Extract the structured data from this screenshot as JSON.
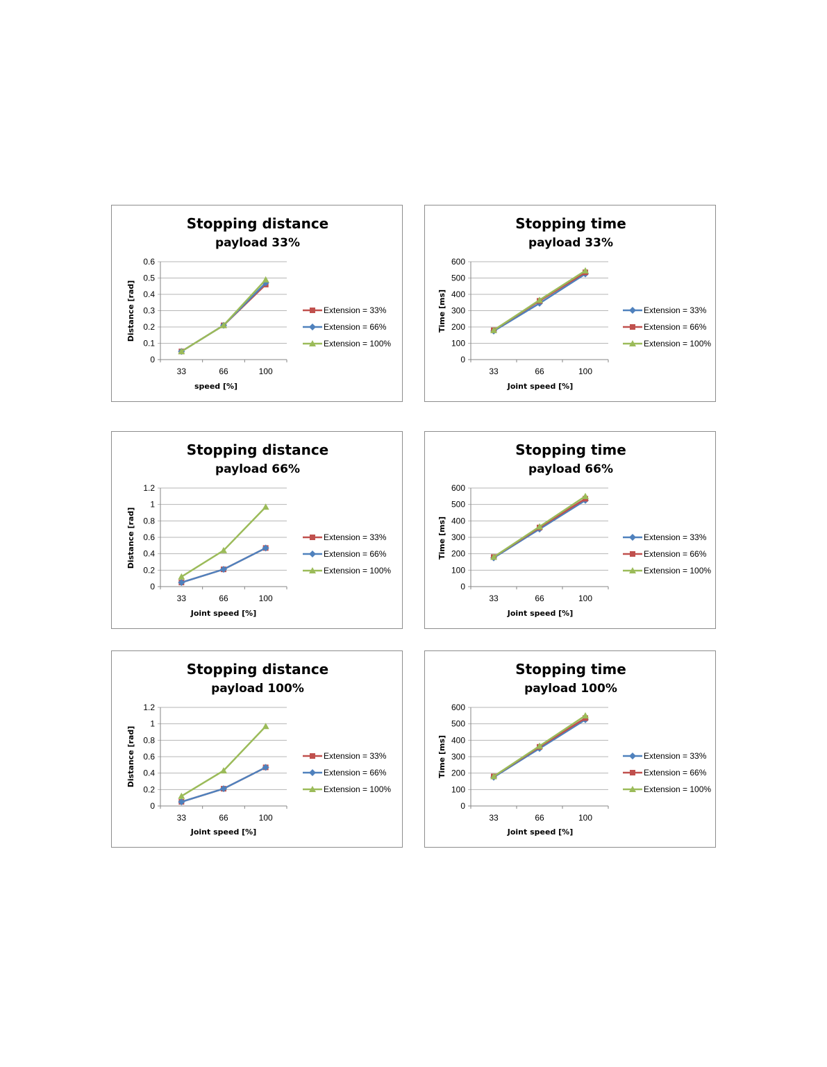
{
  "chart_data": [
    {
      "type": "line",
      "title": "Stopping distance",
      "subtitle": "payload 33%",
      "xlabel": "speed [%]",
      "ylabel": "Distance [rad]",
      "categories": [
        "33",
        "66",
        "100"
      ],
      "yticks": [
        "0",
        "0.1",
        "0.2",
        "0.3",
        "0.4",
        "0.5",
        "0.6"
      ],
      "ylim": [
        0,
        0.6
      ],
      "grid": true,
      "legend_position": "right",
      "series": [
        {
          "name": "Extension = 33%",
          "color": "#c0504d",
          "marker": "square",
          "values": [
            0.05,
            0.21,
            0.46
          ]
        },
        {
          "name": "Extension = 66%",
          "color": "#4f81bd",
          "marker": "diamond",
          "values": [
            0.05,
            0.21,
            0.47
          ]
        },
        {
          "name": "Extension = 100%",
          "color": "#9bbb59",
          "marker": "triangle",
          "values": [
            0.05,
            0.21,
            0.49
          ]
        }
      ]
    },
    {
      "type": "line",
      "title": "Stopping time",
      "subtitle": "payload 33%",
      "xlabel": "Joint speed [%]",
      "ylabel": "Time [ms]",
      "categories": [
        "33",
        "66",
        "100"
      ],
      "yticks": [
        "0",
        "100",
        "200",
        "300",
        "400",
        "500",
        "600"
      ],
      "ylim": [
        0,
        600
      ],
      "grid": true,
      "legend_position": "right",
      "series": [
        {
          "name": "Extension = 33%",
          "color": "#4f81bd",
          "marker": "diamond",
          "values": [
            175,
            345,
            525
          ]
        },
        {
          "name": "Extension = 66%",
          "color": "#c0504d",
          "marker": "square",
          "values": [
            180,
            360,
            535
          ]
        },
        {
          "name": "Extension = 100%",
          "color": "#9bbb59",
          "marker": "triangle",
          "values": [
            180,
            365,
            545
          ]
        }
      ]
    },
    {
      "type": "line",
      "title": "Stopping distance",
      "subtitle": "payload 66%",
      "xlabel": "Joint speed [%]",
      "ylabel": "Distance [rad]",
      "categories": [
        "33",
        "66",
        "100"
      ],
      "yticks": [
        "0",
        "0.2",
        "0.4",
        "0.6",
        "0.8",
        "1",
        "1.2"
      ],
      "ylim": [
        0,
        1.2
      ],
      "grid": true,
      "legend_position": "right",
      "series": [
        {
          "name": "Extension = 33%",
          "color": "#c0504d",
          "marker": "square",
          "values": [
            0.05,
            0.21,
            0.47
          ]
        },
        {
          "name": "Extension = 66%",
          "color": "#4f81bd",
          "marker": "diamond",
          "values": [
            0.05,
            0.21,
            0.47
          ]
        },
        {
          "name": "Extension = 100%",
          "color": "#9bbb59",
          "marker": "triangle",
          "values": [
            0.12,
            0.44,
            0.97
          ]
        }
      ]
    },
    {
      "type": "line",
      "title": "Stopping time",
      "subtitle": "payload 66%",
      "xlabel": "Joint speed [%]",
      "ylabel": "Time [ms]",
      "categories": [
        "33",
        "66",
        "100"
      ],
      "yticks": [
        "0",
        "100",
        "200",
        "300",
        "400",
        "500",
        "600"
      ],
      "ylim": [
        0,
        600
      ],
      "grid": true,
      "legend_position": "right",
      "series": [
        {
          "name": "Extension = 33%",
          "color": "#4f81bd",
          "marker": "diamond",
          "values": [
            175,
            350,
            525
          ]
        },
        {
          "name": "Extension = 66%",
          "color": "#c0504d",
          "marker": "square",
          "values": [
            180,
            360,
            535
          ]
        },
        {
          "name": "Extension = 100%",
          "color": "#9bbb59",
          "marker": "triangle",
          "values": [
            180,
            365,
            550
          ]
        }
      ]
    },
    {
      "type": "line",
      "title": "Stopping distance",
      "subtitle": "payload 100%",
      "xlabel": "Joint speed [%]",
      "ylabel": "Distance [rad]",
      "categories": [
        "33",
        "66",
        "100"
      ],
      "yticks": [
        "0",
        "0.2",
        "0.4",
        "0.6",
        "0.8",
        "1",
        "1.2"
      ],
      "ylim": [
        0,
        1.2
      ],
      "grid": true,
      "legend_position": "right",
      "series": [
        {
          "name": "Extension = 33%",
          "color": "#c0504d",
          "marker": "square",
          "values": [
            0.05,
            0.21,
            0.47
          ]
        },
        {
          "name": "Extension = 66%",
          "color": "#4f81bd",
          "marker": "diamond",
          "values": [
            0.05,
            0.21,
            0.47
          ]
        },
        {
          "name": "Extension = 100%",
          "color": "#9bbb59",
          "marker": "triangle",
          "values": [
            0.12,
            0.43,
            0.97
          ]
        }
      ]
    },
    {
      "type": "line",
      "title": "Stopping time",
      "subtitle": "payload 100%",
      "xlabel": "Joint speed [%]",
      "ylabel": "Time [ms]",
      "categories": [
        "33",
        "66",
        "100"
      ],
      "yticks": [
        "0",
        "100",
        "200",
        "300",
        "400",
        "500",
        "600"
      ],
      "ylim": [
        0,
        600
      ],
      "grid": true,
      "legend_position": "right",
      "series": [
        {
          "name": "Extension = 33%",
          "color": "#4f81bd",
          "marker": "diamond",
          "values": [
            175,
            350,
            525
          ]
        },
        {
          "name": "Extension = 66%",
          "color": "#c0504d",
          "marker": "square",
          "values": [
            180,
            360,
            535
          ]
        },
        {
          "name": "Extension = 100%",
          "color": "#9bbb59",
          "marker": "triangle",
          "values": [
            180,
            365,
            550
          ]
        }
      ]
    }
  ]
}
